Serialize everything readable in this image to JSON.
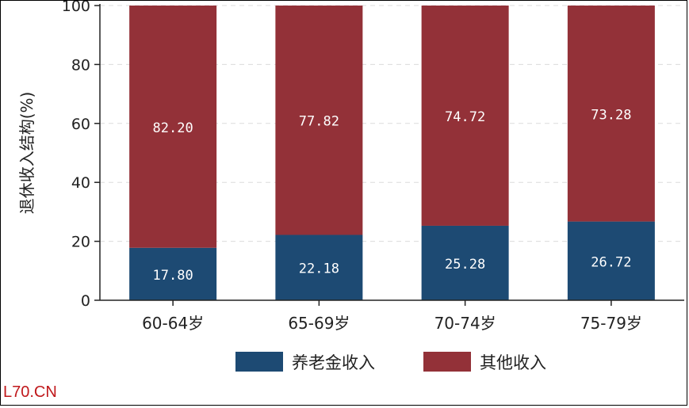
{
  "chart_data": {
    "type": "bar",
    "stacked": true,
    "categories": [
      "60-64岁",
      "65-69岁",
      "70-74岁",
      "75-79岁"
    ],
    "series": [
      {
        "name": "养老金收入",
        "values": [
          17.8,
          22.18,
          25.28,
          26.72
        ],
        "labels": [
          "17.80",
          "22.18",
          "25.28",
          "26.72"
        ],
        "color": "#1d4a73"
      },
      {
        "name": "其他收入",
        "values": [
          82.2,
          77.82,
          74.72,
          73.28
        ],
        "labels": [
          "82.20",
          "77.82",
          "74.72",
          "73.28"
        ],
        "color": "#933138"
      }
    ],
    "ylabel": "退休收入结构(%)",
    "ylim": [
      0,
      100
    ],
    "yticks": [
      0,
      20,
      40,
      60,
      80,
      100
    ],
    "grid": true,
    "legend_position": "bottom"
  },
  "watermark": "L70.CN"
}
